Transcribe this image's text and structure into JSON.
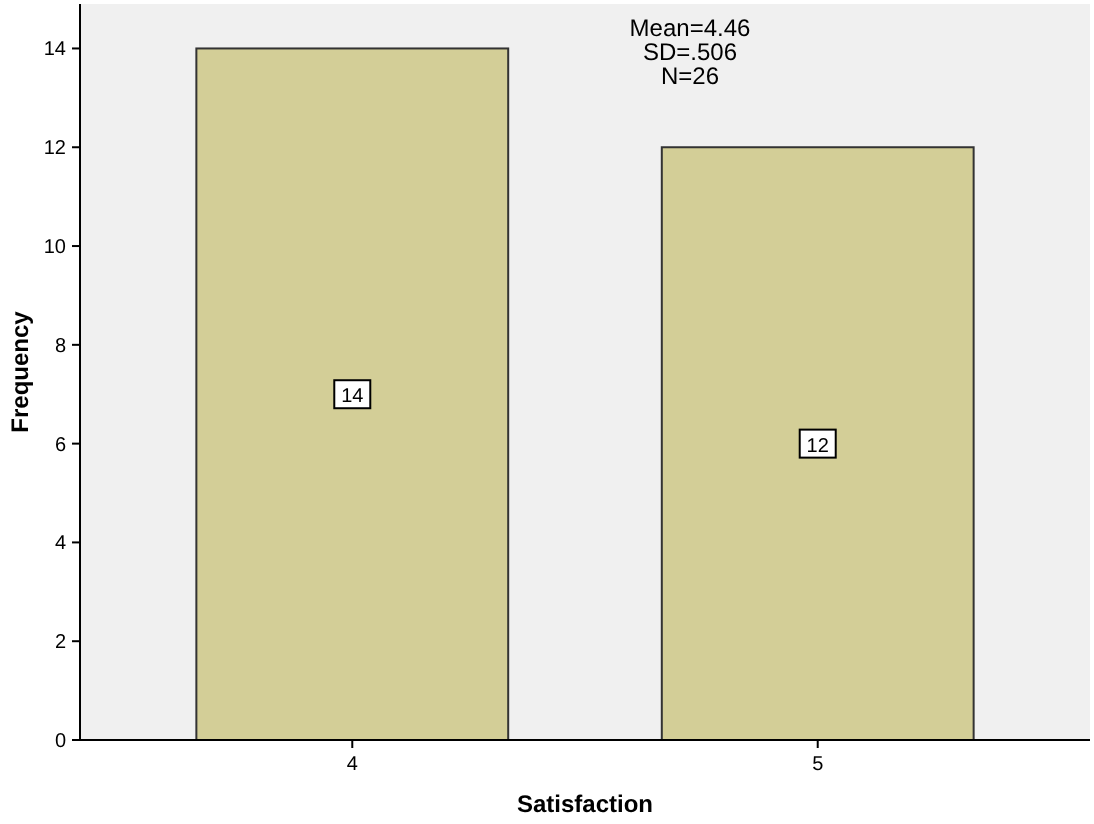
{
  "chart_data": {
    "type": "bar",
    "xlabel": "Satisfaction",
    "ylabel": "Frequency",
    "categories": [
      "4",
      "5"
    ],
    "values": [
      14,
      12
    ],
    "color": "#d3ce97",
    "ylim": [
      0,
      14.9
    ],
    "yticks": [
      0,
      2,
      4,
      6,
      8,
      10,
      12,
      14
    ],
    "data_labels": true,
    "annotations": [
      "Mean=4.46",
      "SD=.506",
      "N=26"
    ]
  }
}
